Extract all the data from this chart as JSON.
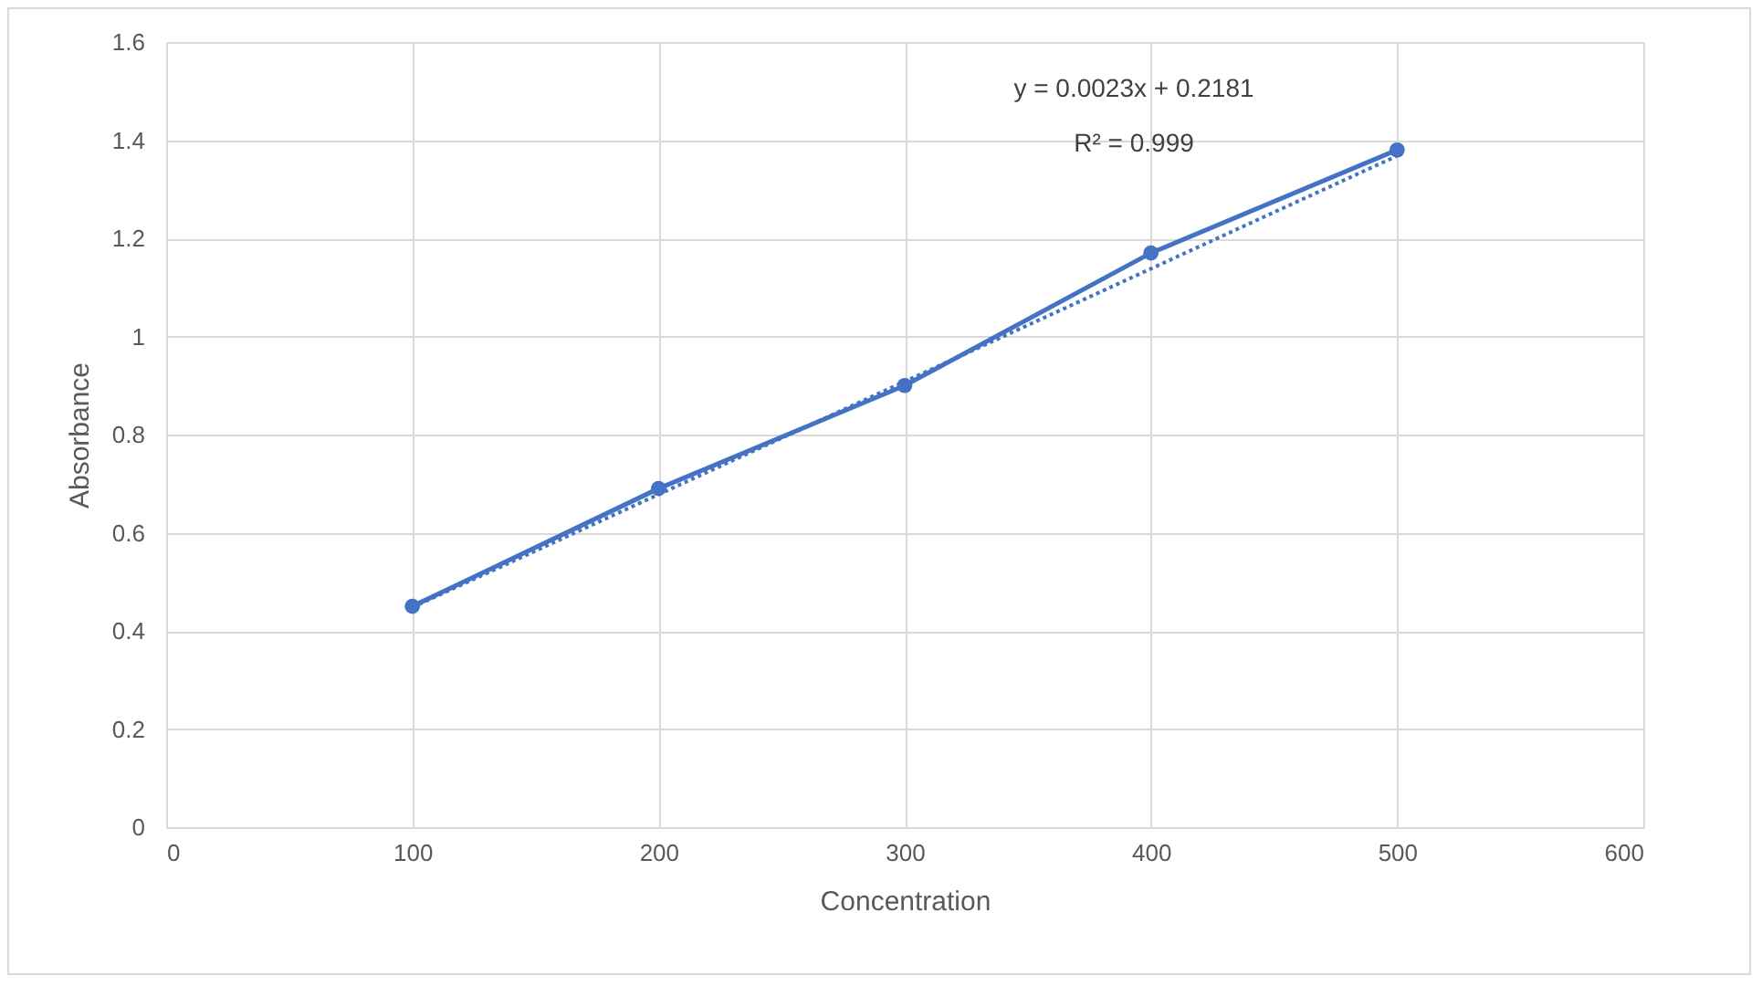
{
  "chart_data": {
    "type": "line",
    "xlabel": "Concentration",
    "ylabel": "Absorbance",
    "annotations": [
      "y = 0.0023x + 0.2181",
      "R² = 0.999"
    ],
    "x": [
      100,
      200,
      300,
      400,
      500
    ],
    "series": [
      {
        "color": "#4472c4",
        "values": [
          0.45,
          0.69,
          0.9,
          1.17,
          1.38
        ]
      },
      {
        "color": "#4472c4",
        "x": [
          100,
          500
        ],
        "values": [
          0.448,
          1.368
        ],
        "marker": "none",
        "line_style": "dotted"
      }
    ],
    "xlim": [
      0,
      600
    ],
    "xticks": [
      0,
      100,
      200,
      300,
      400,
      500,
      600
    ],
    "ylim": [
      0,
      1.6
    ],
    "yticks": [
      0,
      0.2,
      0.4,
      0.6,
      0.8,
      1,
      1.2,
      1.4,
      1.6
    ],
    "grid": true,
    "marker": "circle",
    "line_style": "solid"
  }
}
